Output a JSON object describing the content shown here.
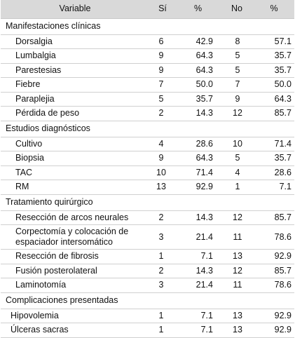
{
  "header": {
    "variable": "Variable",
    "si": "Sí",
    "pct_si": "%",
    "no": "No",
    "pct_no": "%"
  },
  "sections": [
    {
      "title": "Manifestaciones clínicas",
      "rows": [
        {
          "name": "Dorsalgia",
          "si": "6",
          "pct_si": "42.9",
          "no": "8",
          "pct_no": "57.1"
        },
        {
          "name": "Lumbalgia",
          "si": "9",
          "pct_si": "64.3",
          "no": "5",
          "pct_no": "35.7"
        },
        {
          "name": "Parestesias",
          "si": "9",
          "pct_si": "64.3",
          "no": "5",
          "pct_no": "35.7"
        },
        {
          "name": "Fiebre",
          "si": "7",
          "pct_si": "50.0",
          "no": "7",
          "pct_no": "50.0"
        },
        {
          "name": "Paraplejia",
          "si": "5",
          "pct_si": "35.7",
          "no": "9",
          "pct_no": "64.3"
        },
        {
          "name": "Pérdida de peso",
          "si": "2",
          "pct_si": "14.3",
          "no": "12",
          "pct_no": "85.7"
        }
      ]
    },
    {
      "title": "Estudios diagnósticos",
      "rows": [
        {
          "name": "Cultivo",
          "si": "4",
          "pct_si": "28.6",
          "no": "10",
          "pct_no": "71.4"
        },
        {
          "name": "Biopsia",
          "si": "9",
          "pct_si": "64.3",
          "no": "5",
          "pct_no": "35.7"
        },
        {
          "name": "TAC",
          "si": "10",
          "pct_si": "71.4",
          "no": "4",
          "pct_no": "28.6"
        },
        {
          "name": "RM",
          "si": "13",
          "pct_si": "92.9",
          "no": "1",
          "pct_no": "7.1"
        }
      ]
    },
    {
      "title": "Tratamiento quirúrgico",
      "rows": [
        {
          "name": "Resección de arcos neurales",
          "si": "2",
          "pct_si": "14.3",
          "no": "12",
          "pct_no": "85.7"
        },
        {
          "name": "Corpectomía y colocación de espaciador intersomático",
          "si": "3",
          "pct_si": "21.4",
          "no": "11",
          "pct_no": "78.6"
        },
        {
          "name": "Resección de fibrosis",
          "si": "1",
          "pct_si": "7.1",
          "no": "13",
          "pct_no": "92.9"
        },
        {
          "name": "Fusión posterolateral",
          "si": "2",
          "pct_si": "14.3",
          "no": "12",
          "pct_no": "85.7"
        },
        {
          "name": "Laminotomía",
          "si": "3",
          "pct_si": "21.4",
          "no": "11",
          "pct_no": "78.6"
        }
      ]
    },
    {
      "title": "Complicaciones presentadas",
      "rows": [
        {
          "name": "Hipovolemia",
          "si": "1",
          "pct_si": "7.1",
          "no": "13",
          "pct_no": "92.9"
        },
        {
          "name": "Úlceras sacras",
          "si": "1",
          "pct_si": "7.1",
          "no": "13",
          "pct_no": "92.9"
        }
      ]
    }
  ]
}
